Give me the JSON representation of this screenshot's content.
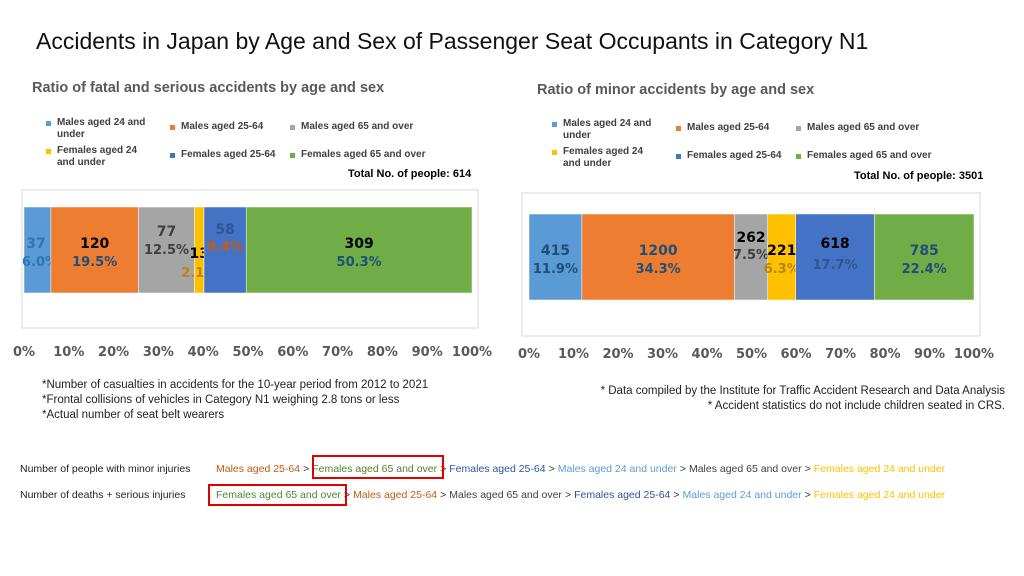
{
  "title": "Accidents in Japan by Age and Sex of Passenger Seat Occupants in Category N1",
  "legend": [
    {
      "label": "Males aged 24 and under",
      "color": "#5b9bd5"
    },
    {
      "label": "Males aged 25-64",
      "color": "#ed7d31"
    },
    {
      "label": "Males aged 65 and over",
      "color": "#a5a5a5"
    },
    {
      "label": "Females aged 24 and under",
      "color": "#ffc000"
    },
    {
      "label": "Females aged 25-64",
      "color": "#4472c4"
    },
    {
      "label": "Females aged 65 and over",
      "color": "#70ad47"
    }
  ],
  "chart_data": [
    {
      "type": "bar",
      "orientation": "horizontal",
      "stacked": "percent",
      "title": "Ratio of fatal and serious accidents by age and sex",
      "total_label": "Total No. of people: 614",
      "xlim": [
        0,
        100
      ],
      "x_ticks": [
        "0%",
        "10%",
        "20%",
        "30%",
        "40%",
        "50%",
        "60%",
        "70%",
        "80%",
        "90%",
        "100%"
      ],
      "legend_position": "top",
      "segments": [
        {
          "name": "Males aged 24 and under",
          "count": "37",
          "percent": "6.0%",
          "value": 6.0
        },
        {
          "name": "Males aged 25-64",
          "count": "120",
          "percent": "19.5%",
          "value": 19.5
        },
        {
          "name": "Males aged 65 and over",
          "count": "77",
          "percent": "12.5%",
          "value": 12.5
        },
        {
          "name": "Females aged 24 and under",
          "count": "13",
          "percent": "2.1%",
          "value": 2.1
        },
        {
          "name": "Females aged 25-64",
          "count": "58",
          "percent": "9.4%",
          "value": 9.4
        },
        {
          "name": "Females aged 65 and over",
          "count": "309",
          "percent": "50.3%",
          "value": 50.3
        }
      ]
    },
    {
      "type": "bar",
      "orientation": "horizontal",
      "stacked": "percent",
      "title": "Ratio of minor accidents by age and sex",
      "total_label": "Total No. of people: 3501",
      "xlim": [
        0,
        100
      ],
      "x_ticks": [
        "0%",
        "10%",
        "20%",
        "30%",
        "40%",
        "50%",
        "60%",
        "70%",
        "80%",
        "90%",
        "100%"
      ],
      "legend_position": "top",
      "segments": [
        {
          "name": "Males aged 24 and under",
          "count": "415",
          "percent": "11.9%",
          "value": 11.9
        },
        {
          "name": "Males aged 25-64",
          "count": "1200",
          "percent": "34.3%",
          "value": 34.3
        },
        {
          "name": "Males aged 65 and over",
          "count": "262",
          "percent": "7.5%",
          "value": 7.5
        },
        {
          "name": "Females aged 24 and under",
          "count": "221",
          "percent": "6.3%",
          "value": 6.3
        },
        {
          "name": "Females aged 25-64",
          "count": "618",
          "percent": "17.7%",
          "value": 17.7
        },
        {
          "name": "Females aged 65 and over",
          "count": "785",
          "percent": "22.4%",
          "value": 22.4
        }
      ]
    }
  ],
  "notes_left": [
    "Number of casualties in accidents for the 10-year period from 2012 to 2021",
    "Frontal collisions of vehicles in Category N1 weighing 2.8 tons or less",
    "Actual number of seat belt wearers"
  ],
  "notes_right": [
    "* Data compiled by the Institute for Traffic Accident Research and Data Analysis",
    "* Accident statistics do not include children seated in CRS."
  ],
  "rankings": [
    {
      "label": "Number of people with minor injuries",
      "items": [
        {
          "text": "Males aged 25-64",
          "color": "#c55a11"
        },
        {
          "text": "Females aged 65 and over",
          "color": "#548235"
        },
        {
          "text": "Females aged 25-64",
          "color": "#2f5597"
        },
        {
          "text": "Males aged 24 and under",
          "color": "#5b9bd5"
        },
        {
          "text": "Males aged 65 and over",
          "color": "#404040"
        },
        {
          "text": "Females aged 24 and under",
          "color": "#ffc000"
        }
      ]
    },
    {
      "label": "Number of deaths + serious injuries",
      "items": [
        {
          "text": "Females aged 65 and over",
          "color": "#548235"
        },
        {
          "text": "Males aged 25-64",
          "color": "#c55a11"
        },
        {
          "text": "Males aged 65 and over",
          "color": "#404040"
        },
        {
          "text": "Females aged 25-64",
          "color": "#2f5597"
        },
        {
          "text": "Males aged 24 and under",
          "color": "#5b9bd5"
        },
        {
          "text": "Females aged 24 and under",
          "color": "#ffc000"
        }
      ]
    }
  ],
  "separator": ">",
  "note_bullet": "*",
  "highlight_color": "#e00000"
}
